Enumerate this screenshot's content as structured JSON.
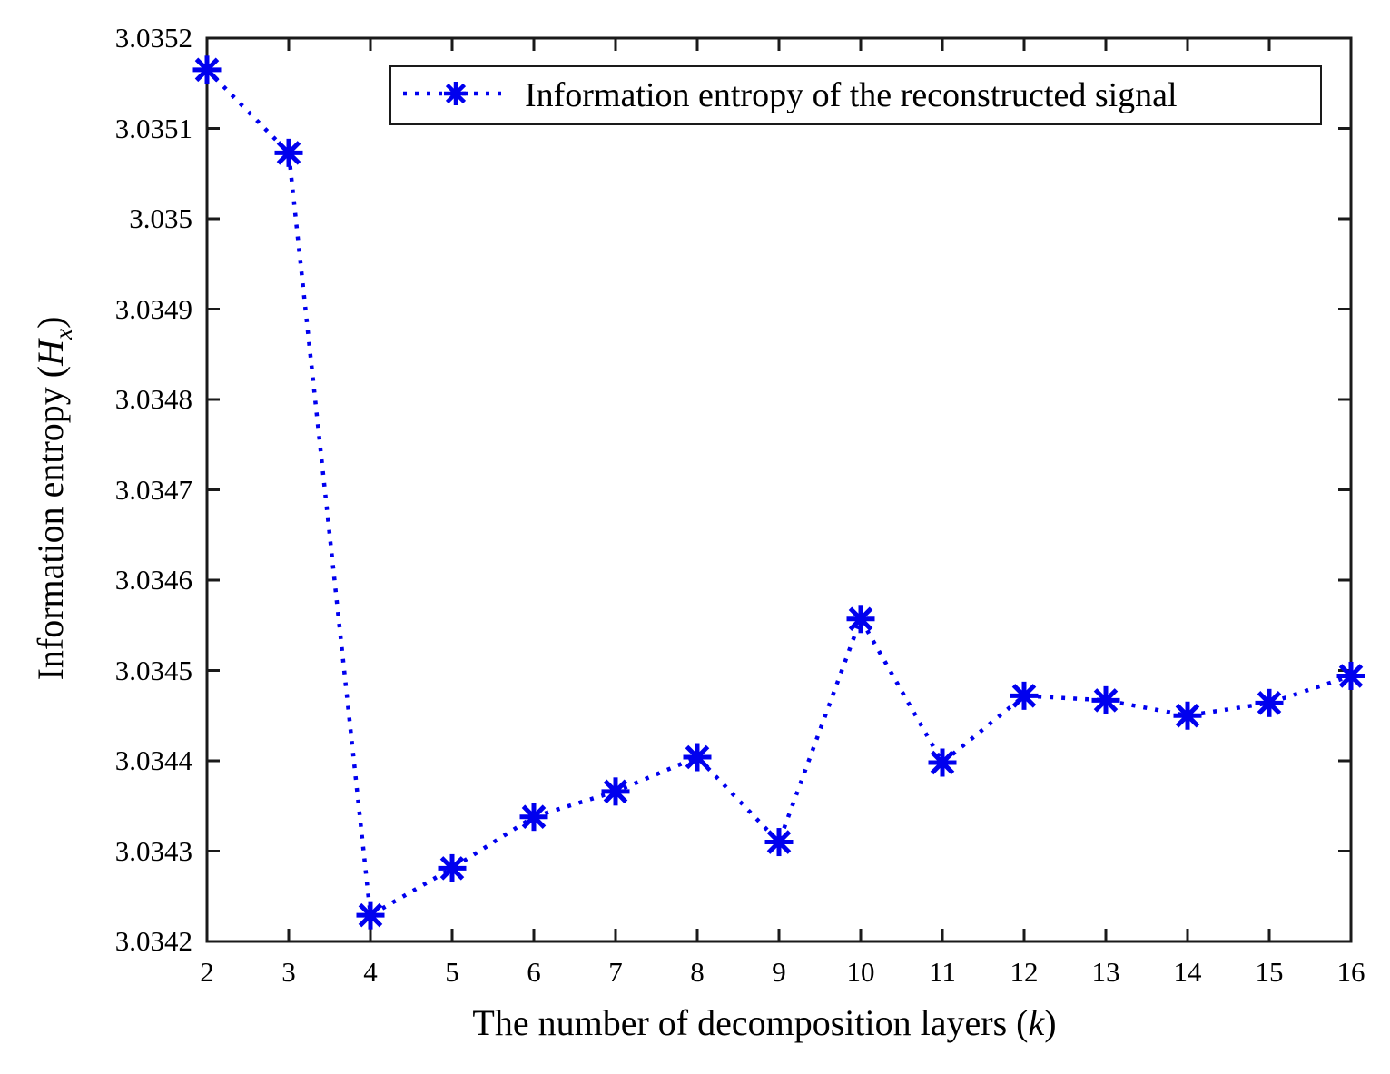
{
  "chart_data": {
    "type": "line",
    "title": "",
    "legend": "Information entropy of the reconstructed signal",
    "legend_position": "top-center-inside",
    "series_name": "Information entropy of the reconstructed signal",
    "x": [
      2,
      3,
      4,
      5,
      6,
      7,
      8,
      9,
      10,
      11,
      12,
      13,
      14,
      15,
      16
    ],
    "values": [
      3.035165,
      3.035073,
      3.034229,
      3.034281,
      3.034338,
      3.034366,
      3.034404,
      3.03431,
      3.034557,
      3.034398,
      3.034472,
      3.034467,
      3.03445,
      3.034464,
      3.034494
    ],
    "xlim": [
      2,
      16
    ],
    "ylim": [
      3.0342,
      3.0352
    ],
    "xtick_labels": [
      "2",
      "3",
      "4",
      "5",
      "6",
      "7",
      "8",
      "9",
      "10",
      "11",
      "12",
      "13",
      "14",
      "15",
      "16"
    ],
    "ytick_values": [
      3.0342,
      3.0343,
      3.0344,
      3.0345,
      3.0346,
      3.0347,
      3.0348,
      3.0349,
      3.035,
      3.0351,
      3.0352
    ],
    "ytick_labels": [
      "3.0342",
      "3.0343",
      "3.0344",
      "3.0345",
      "3.0346",
      "3.0347",
      "3.0348",
      "3.0349",
      "3.035",
      "3.0351",
      "3.0352"
    ],
    "xlabel_parts": {
      "prefix": "The number of decomposition layers (",
      "var": "k",
      "suffix": ")"
    },
    "ylabel_parts": {
      "prefix": "Information entropy (",
      "var": "H",
      "sub": "x",
      "suffix": ")"
    },
    "line_style": "dotted",
    "marker": "asterisk",
    "grid": false,
    "colors": {
      "series": "#0000EE",
      "axis": "#1A1A1A",
      "text": "#000000",
      "background": "#FFFFFF",
      "legend_border": "#1A1A1A"
    }
  }
}
